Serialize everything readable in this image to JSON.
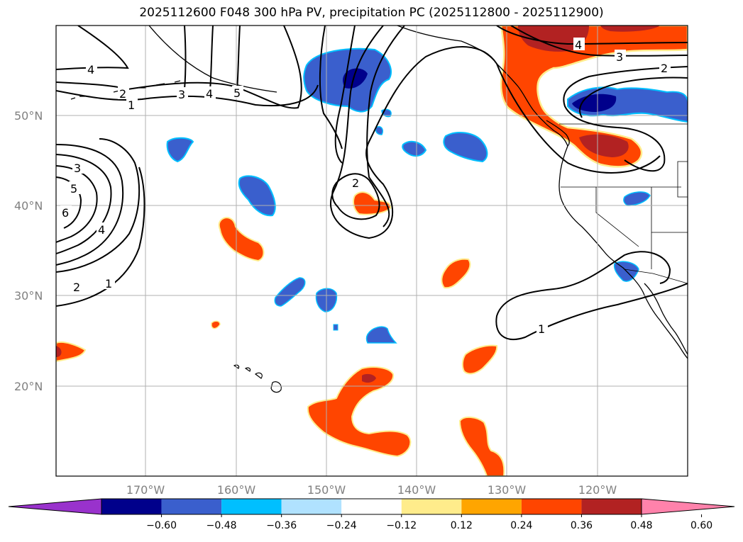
{
  "title": "2025112600 F048 300 hPa PV, precipitation PC (2025112800 - 2025112900)",
  "lat_labels": [
    "50°N",
    "40°N",
    "30°N",
    "20°N"
  ],
  "lon_labels": [
    "170°W",
    "160°W",
    "150°W",
    "140°W",
    "130°W",
    "120°W"
  ],
  "contour_labels": [
    "4",
    "2",
    "1",
    "3",
    "4",
    "5",
    "3",
    "5",
    "6",
    "4",
    "2",
    "1",
    "2",
    "4",
    "3",
    "2",
    "1"
  ],
  "colorbar": {
    "ticks": [
      "−0.60",
      "−0.48",
      "−0.36",
      "−0.24",
      "−0.12",
      "0.12",
      "0.24",
      "0.36",
      "0.48",
      "0.60"
    ],
    "colors": [
      "#9932cc",
      "#00008b",
      "#3a5fcd",
      "#00bfff",
      "#b0e2ff",
      "#ffffff",
      "#ffec8b",
      "#ffa500",
      "#ff4500",
      "#b22222",
      "#ff82ab"
    ]
  },
  "colors": {
    "neg_strong": "#00008b",
    "neg_mid": "#3a5fcd",
    "neg_light": "#00bfff",
    "neg_faint": "#b0e2ff",
    "pos_faint": "#ffec8b",
    "pos_light": "#ffa500",
    "pos_mid": "#ff4500",
    "pos_strong": "#b22222",
    "grid": "#b0b0b0"
  }
}
